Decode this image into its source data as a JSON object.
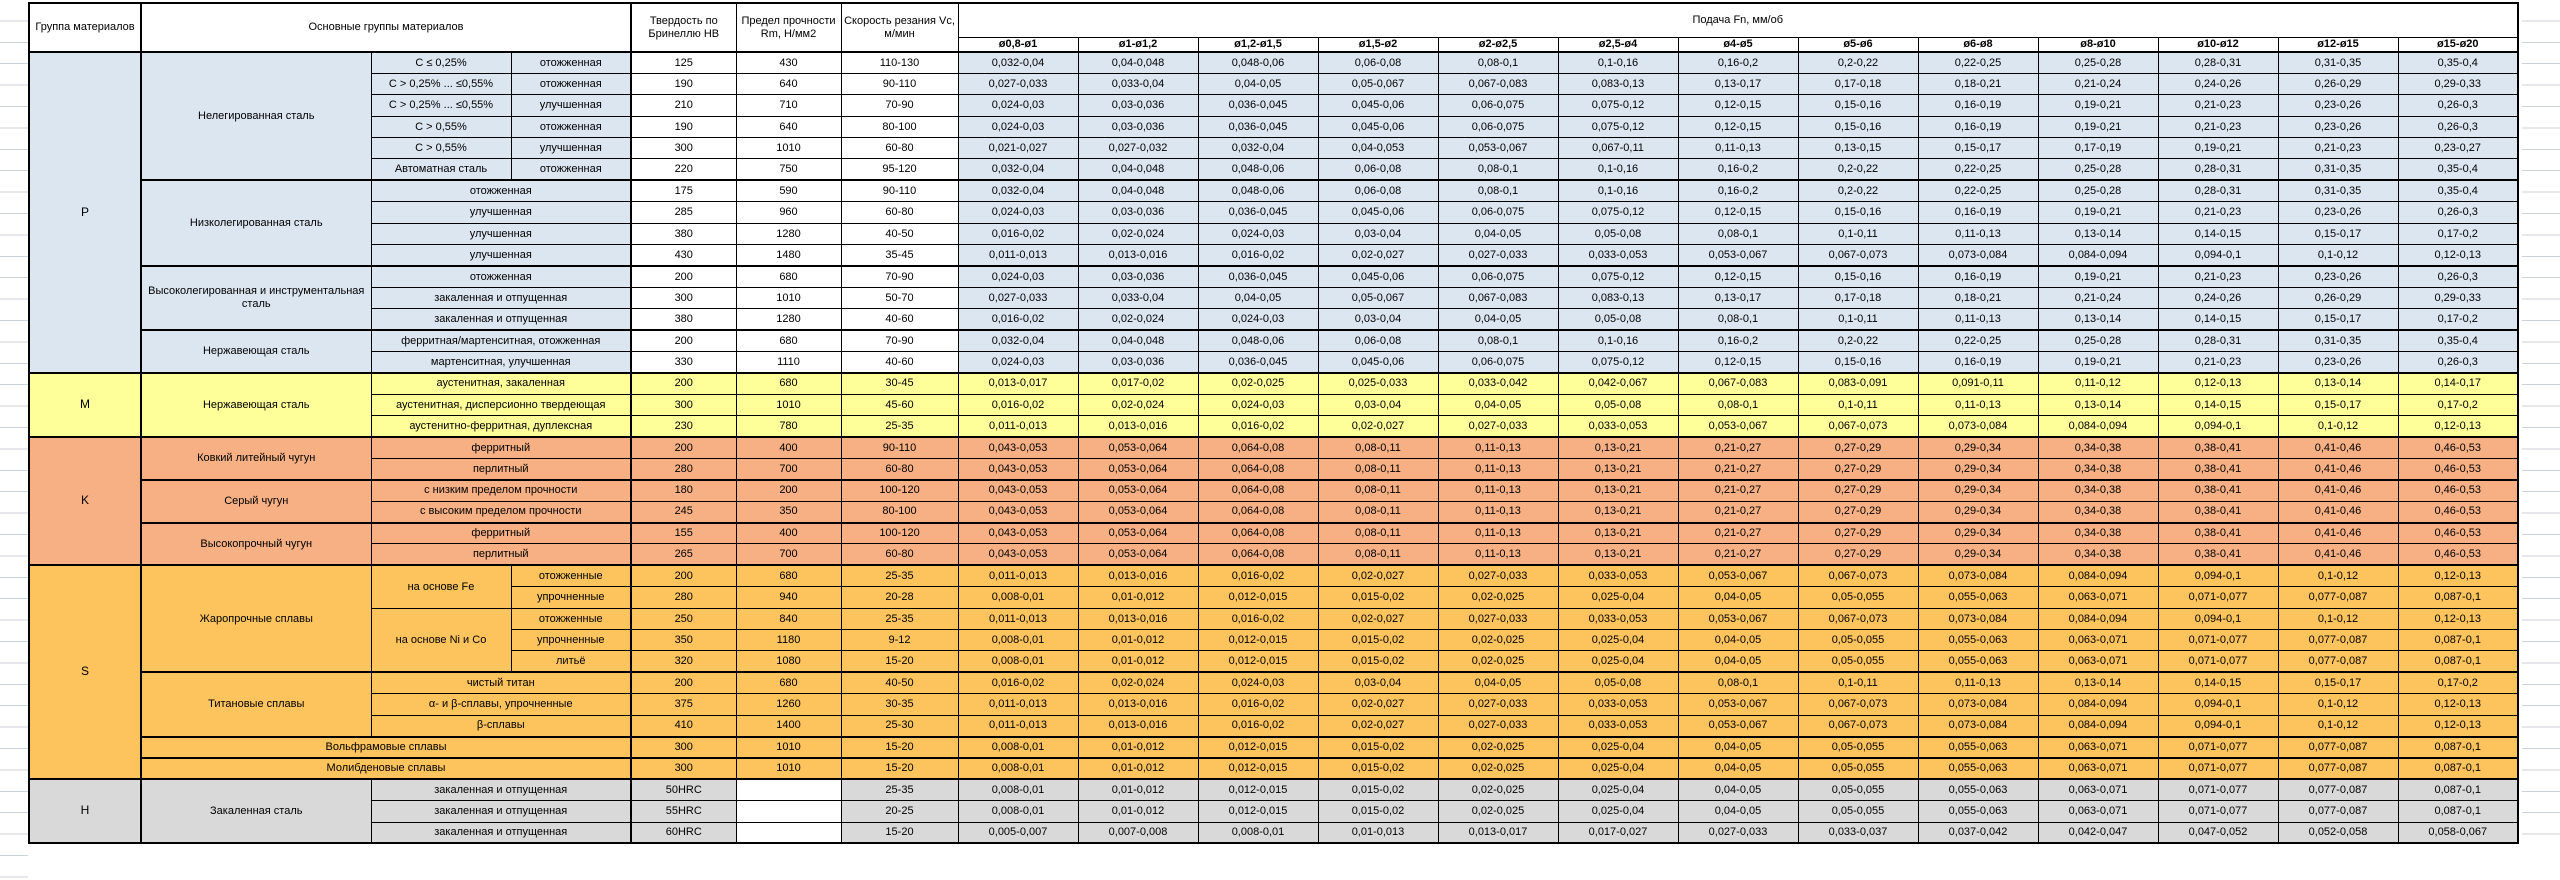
{
  "table": {
    "headers": {
      "group": "Группа материалов",
      "materials": "Основные группы материалов",
      "hardness": "Твердость по Бринеллю НВ",
      "strength": "Предел прочности Rm, Н/мм2",
      "speed": "Скорость резания Vc, м/мин",
      "feed": "Подача Fn, мм/об",
      "diameters": [
        "ø0,8-ø1",
        "ø1-ø1,2",
        "ø1,2-ø1,5",
        "ø1,5-ø2",
        "ø2-ø2,5",
        "ø2,5-ø4",
        "ø4-ø5",
        "ø5-ø6",
        "ø6-ø8",
        "ø8-ø10",
        "ø10-ø12",
        "ø12-ø15",
        "ø15-ø20"
      ]
    },
    "colors": {
      "P": "#DCE6F1",
      "M": "#FFFF99",
      "K": "#F6B083",
      "S": "#FDC35C",
      "H": "#D9D9D9",
      "border": "#000000",
      "gridline": "#CCD2DB"
    },
    "feed_patterns": {
      "A": [
        "0,032-0,04",
        "0,04-0,048",
        "0,048-0,06",
        "0,06-0,08",
        "0,08-0,1",
        "0,1-0,16",
        "0,16-0,2",
        "0,2-0,22",
        "0,22-0,25",
        "0,25-0,28",
        "0,28-0,31",
        "0,31-0,35",
        "0,35-0,4"
      ],
      "B": [
        "0,027-0,033",
        "0,033-0,04",
        "0,04-0,05",
        "0,05-0,067",
        "0,067-0,083",
        "0,083-0,13",
        "0,13-0,17",
        "0,17-0,18",
        "0,18-0,21",
        "0,21-0,24",
        "0,24-0,26",
        "0,26-0,29",
        "0,29-0,33"
      ],
      "C": [
        "0,024-0,03",
        "0,03-0,036",
        "0,036-0,045",
        "0,045-0,06",
        "0,06-0,075",
        "0,075-0,12",
        "0,12-0,15",
        "0,15-0,16",
        "0,16-0,19",
        "0,19-0,21",
        "0,21-0,23",
        "0,23-0,26",
        "0,26-0,3"
      ],
      "D": [
        "0,021-0,027",
        "0,027-0,032",
        "0,032-0,04",
        "0,04-0,053",
        "0,053-0,067",
        "0,067-0,11",
        "0,11-0,13",
        "0,13-0,15",
        "0,15-0,17",
        "0,17-0,19",
        "0,19-0,21",
        "0,21-0,23",
        "0,23-0,27"
      ],
      "E": [
        "0,016-0,02",
        "0,02-0,024",
        "0,024-0,03",
        "0,03-0,04",
        "0,04-0,05",
        "0,05-0,08",
        "0,08-0,1",
        "0,1-0,11",
        "0,11-0,13",
        "0,13-0,14",
        "0,14-0,15",
        "0,15-0,17",
        "0,17-0,2"
      ],
      "F": [
        "0,011-0,013",
        "0,013-0,016",
        "0,016-0,02",
        "0,02-0,027",
        "0,027-0,033",
        "0,033-0,053",
        "0,053-0,067",
        "0,067-0,073",
        "0,073-0,084",
        "0,084-0,094",
        "0,094-0,1",
        "0,1-0,12",
        "0,12-0,13"
      ],
      "G": [
        "0,013-0,017",
        "0,017-0,02",
        "0,02-0,025",
        "0,025-0,033",
        "0,033-0,042",
        "0,042-0,067",
        "0,067-0,083",
        "0,083-0,091",
        "0,091-0,11",
        "0,11-0,12",
        "0,12-0,13",
        "0,13-0,14",
        "0,14-0,17"
      ],
      "K": [
        "0,043-0,053",
        "0,053-0,064",
        "0,064-0,08",
        "0,08-0,11",
        "0,11-0,13",
        "0,13-0,21",
        "0,21-0,27",
        "0,27-0,29",
        "0,29-0,34",
        "0,34-0,38",
        "0,38-0,41",
        "0,41-0,46",
        "0,46-0,53"
      ],
      "H": [
        "0,008-0,01",
        "0,01-0,012",
        "0,012-0,015",
        "0,015-0,02",
        "0,02-0,025",
        "0,025-0,04",
        "0,04-0,05",
        "0,05-0,055",
        "0,055-0,063",
        "0,063-0,071",
        "0,071-0,077",
        "0,077-0,087",
        "0,087-0,1"
      ],
      "Z": [
        "0,005-0,007",
        "0,007-0,008",
        "0,008-0,01",
        "0,01-0,013",
        "0,013-0,017",
        "0,017-0,027",
        "0,027-0,033",
        "0,033-0,037",
        "0,037-0,042",
        "0,042-0,047",
        "0,047-0,052",
        "0,052-0,058",
        "0,058-0,067"
      ]
    },
    "groups": [
      {
        "code": "P",
        "materials": [
          {
            "name": "Нелегированная сталь",
            "rows": [
              {
                "sub1": "C ≤ 0,25%",
                "sub2": "отожженная",
                "hb": "125",
                "rm": "430",
                "vc": "110-130",
                "feeds": "A"
              },
              {
                "sub1": "C > 0,25% ... ≤0,55%",
                "sub2": "отожженная",
                "hb": "190",
                "rm": "640",
                "vc": "90-110",
                "feeds": "B"
              },
              {
                "sub1": "C > 0,25% ... ≤0,55%",
                "sub2": "улучшенная",
                "hb": "210",
                "rm": "710",
                "vc": "70-90",
                "feeds": "C"
              },
              {
                "sub1": "C > 0,55%",
                "sub2": "отожженная",
                "hb": "190",
                "rm": "640",
                "vc": "80-100",
                "feeds": "C"
              },
              {
                "sub1": "C > 0,55%",
                "sub2": "улучшенная",
                "hb": "300",
                "rm": "1010",
                "vc": "60-80",
                "feeds": "D"
              },
              {
                "sub1": "Автоматная сталь",
                "sub2": "отожженная",
                "hb": "220",
                "rm": "750",
                "vc": "95-120",
                "feeds": "A"
              }
            ]
          },
          {
            "name": "Низколегированная сталь",
            "rows": [
              {
                "sub": "отожженная",
                "hb": "175",
                "rm": "590",
                "vc": "90-110",
                "feeds": "A"
              },
              {
                "sub": "улучшенная",
                "hb": "285",
                "rm": "960",
                "vc": "60-80",
                "feeds": "C"
              },
              {
                "sub": "улучшенная",
                "hb": "380",
                "rm": "1280",
                "vc": "40-50",
                "feeds": "E"
              },
              {
                "sub": "улучшенная",
                "hb": "430",
                "rm": "1480",
                "vc": "35-45",
                "feeds": "F"
              }
            ]
          },
          {
            "name": "Высоколегированная и инструментальная сталь",
            "rows": [
              {
                "sub": "отожженная",
                "hb": "200",
                "rm": "680",
                "vc": "70-90",
                "feeds": "C"
              },
              {
                "sub": "закаленная и отпущенная",
                "hb": "300",
                "rm": "1010",
                "vc": "50-70",
                "feeds": "B"
              },
              {
                "sub": "закаленная и отпущенная",
                "hb": "380",
                "rm": "1280",
                "vc": "40-60",
                "feeds": "E"
              }
            ]
          },
          {
            "name": "Нержавеющая сталь",
            "rows": [
              {
                "sub": "ферритная/мартенситная, отожженная",
                "hb": "200",
                "rm": "680",
                "vc": "70-90",
                "feeds": "A"
              },
              {
                "sub": "мартенситная, улучшенная",
                "hb": "330",
                "rm": "1110",
                "vc": "40-60",
                "feeds": "C"
              }
            ]
          }
        ]
      },
      {
        "code": "M",
        "materials": [
          {
            "name": "Нержавеющая сталь",
            "rows": [
              {
                "sub": "аустенитная, закаленная",
                "hb": "200",
                "rm": "680",
                "vc": "30-45",
                "feeds": "G"
              },
              {
                "sub": "аустенитная, дисперсионно твердеющая",
                "hb": "300",
                "rm": "1010",
                "vc": "45-60",
                "feeds": "E"
              },
              {
                "sub": "аустенитно-ферритная, дуплексная",
                "hb": "230",
                "rm": "780",
                "vc": "25-35",
                "feeds": "F"
              }
            ]
          }
        ]
      },
      {
        "code": "K",
        "materials": [
          {
            "name": "Ковкий литейный чугун",
            "rows": [
              {
                "sub": "ферритный",
                "hb": "200",
                "rm": "400",
                "vc": "90-110",
                "feeds": "K"
              },
              {
                "sub": "перлитный",
                "hb": "280",
                "rm": "700",
                "vc": "60-80",
                "feeds": "K"
              }
            ]
          },
          {
            "name": "Серый чугун",
            "rows": [
              {
                "sub": "с низким пределом прочности",
                "hb": "180",
                "rm": "200",
                "vc": "100-120",
                "feeds": "K"
              },
              {
                "sub": "с высоким пределом прочности",
                "hb": "245",
                "rm": "350",
                "vc": "80-100",
                "feeds": "K"
              }
            ]
          },
          {
            "name": "Высокопрочный чугун",
            "rows": [
              {
                "sub": "ферритный",
                "hb": "155",
                "rm": "400",
                "vc": "100-120",
                "feeds": "K"
              },
              {
                "sub": "перлитный",
                "hb": "265",
                "rm": "700",
                "vc": "60-80",
                "feeds": "K"
              }
            ]
          }
        ]
      },
      {
        "code": "S",
        "materials": [
          {
            "name": "Жаропрочные сплавы",
            "rows": [
              {
                "sub1": "на основе Fe",
                "sub1_span": 2,
                "sub2": "отожженные",
                "hb": "200",
                "rm": "680",
                "vc": "25-35",
                "feeds": "F"
              },
              {
                "sub2": "упрочненные",
                "hb": "280",
                "rm": "940",
                "vc": "20-28",
                "feeds": "H"
              },
              {
                "sub1": "на основе Ni и Co",
                "sub1_span": 3,
                "sub2": "отожженные",
                "hb": "250",
                "rm": "840",
                "vc": "25-35",
                "feeds": "F"
              },
              {
                "sub2": "упрочненные",
                "hb": "350",
                "rm": "1180",
                "vc": "9-12",
                "feeds": "H"
              },
              {
                "sub2": "литьё",
                "hb": "320",
                "rm": "1080",
                "vc": "15-20",
                "feeds": "H"
              }
            ]
          },
          {
            "name": "Титановые сплавы",
            "rows": [
              {
                "sub": "чистый титан",
                "hb": "200",
                "rm": "680",
                "vc": "40-50",
                "feeds": "E"
              },
              {
                "sub": "α- и β-сплавы, упрочненные",
                "hb": "375",
                "rm": "1260",
                "vc": "30-35",
                "feeds": "F"
              },
              {
                "sub": "β-сплавы",
                "hb": "410",
                "rm": "1400",
                "vc": "25-30",
                "feeds": "F"
              }
            ]
          },
          {
            "name": "Вольфрамовые сплавы",
            "merged": true,
            "rows": [
              {
                "hb": "300",
                "rm": "1010",
                "vc": "15-20",
                "feeds": "H"
              }
            ]
          },
          {
            "name": "Молибденовые сплавы",
            "merged": true,
            "rows": [
              {
                "hb": "300",
                "rm": "1010",
                "vc": "15-20",
                "feeds": "H"
              }
            ]
          }
        ]
      },
      {
        "code": "H",
        "materials": [
          {
            "name": "Закаленная сталь",
            "rows": [
              {
                "sub": "закаленная и отпущенная",
                "hb": "50HRC",
                "rm": "",
                "vc": "25-35",
                "feeds": "H"
              },
              {
                "sub": "закаленная и отпущенная",
                "hb": "55HRC",
                "rm": "",
                "vc": "20-25",
                "feeds": "H"
              },
              {
                "sub": "закаленная и отпущенная",
                "hb": "60HRC",
                "rm": "",
                "vc": "15-20",
                "feeds": "Z"
              }
            ]
          }
        ]
      }
    ]
  }
}
